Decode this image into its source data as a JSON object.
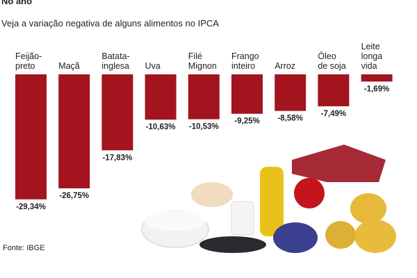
{
  "chart_data": {
    "type": "bar",
    "title": "No ano",
    "subtitle": "Veja a variação negativa de alguns alimentos no IPCA",
    "categories": [
      "Feijão-\npreto",
      "Maçã",
      "Batata-\ninglesa",
      "Uva",
      "Filé\nMignon",
      "Frango\ninteiro",
      "Arroz",
      "Óleo\nde soja",
      "Leite\nlonga\nvida"
    ],
    "values": [
      -29.34,
      -26.75,
      -17.83,
      -10.63,
      -10.53,
      -9.25,
      -8.58,
      -7.49,
      -1.69
    ],
    "value_labels": [
      "-29,34%",
      "-26,75%",
      "-17,83%",
      "-10,63%",
      "-10,53%",
      "-9,25%",
      "-8,58%",
      "-7,49%",
      "-1,69%"
    ],
    "color": "#a3141f",
    "source": "Fonte: IBGE"
  }
}
